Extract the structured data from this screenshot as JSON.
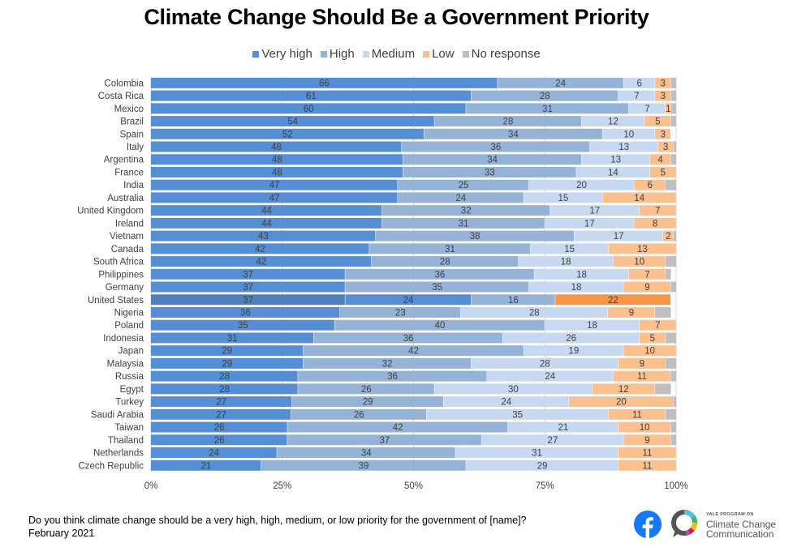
{
  "chart_data": {
    "type": "bar",
    "orientation": "horizontal",
    "stacked": "percent",
    "title": "Climate Change Should Be a Government Priority",
    "xlabel": "",
    "ylabel": "",
    "xlim": [
      0,
      100
    ],
    "x_ticks": [
      "0%",
      "25%",
      "50%",
      "75%",
      "100%"
    ],
    "grid": "vertical",
    "legend_position": "top",
    "categories": [
      "Colombia",
      "Costa Rica",
      "Mexico",
      "Brazil",
      "Spain",
      "Italy",
      "Argentina",
      "France",
      "India",
      "Australia",
      "United Kingdom",
      "Ireland",
      "Vietnam",
      "Canada",
      "South Africa",
      "Philippines",
      "Germany",
      "United States",
      "Nigeria",
      "Poland",
      "Indonesia",
      "Japan",
      "Malaysia",
      "Russia",
      "Egypt",
      "Turkey",
      "Saudi Arabia",
      "Taiwan",
      "Thailand",
      "Netherlands",
      "Czech Republic"
    ],
    "series": [
      {
        "name": "Very high",
        "color": "#558ed5",
        "values": [
          66,
          61,
          60,
          54,
          52,
          48,
          48,
          48,
          47,
          47,
          44,
          44,
          43,
          42,
          42,
          37,
          37,
          37,
          36,
          35,
          31,
          29,
          29,
          28,
          28,
          27,
          27,
          26,
          26,
          24,
          21
        ]
      },
      {
        "name": "High",
        "color": "#95b3d7",
        "values": [
          24,
          28,
          31,
          28,
          34,
          36,
          34,
          33,
          25,
          24,
          32,
          31,
          38,
          31,
          28,
          36,
          35,
          24,
          23,
          40,
          36,
          42,
          32,
          36,
          26,
          29,
          26,
          42,
          37,
          34,
          39
        ]
      },
      {
        "name": "Medium",
        "color": "#c6d9f1",
        "values": [
          6,
          7,
          7,
          12,
          10,
          13,
          13,
          14,
          20,
          15,
          17,
          17,
          17,
          15,
          18,
          18,
          18,
          16,
          28,
          18,
          26,
          19,
          28,
          24,
          30,
          24,
          35,
          21,
          27,
          31,
          29
        ]
      },
      {
        "name": "Low",
        "color": "#fac090",
        "values": [
          3,
          3,
          1,
          5,
          3,
          3,
          4,
          5,
          6,
          14,
          7,
          8,
          2,
          13,
          10,
          7,
          9,
          22,
          9,
          7,
          5,
          10,
          9,
          11,
          12,
          20,
          11,
          10,
          9,
          11,
          11
        ]
      },
      {
        "name": "No response",
        "color": "#bfbfbf",
        "values": [
          1,
          1,
          1,
          1,
          0,
          0.5,
          1,
          0,
          2,
          0,
          0,
          0,
          0.5,
          0,
          2,
          1,
          1,
          0,
          3,
          0,
          2,
          0,
          2,
          1,
          3,
          0.5,
          2,
          1,
          1,
          0,
          0
        ]
      }
    ],
    "highlight": {
      "category": "United States",
      "colors": [
        "#4f81bd",
        "#558ed5",
        "#95b3d7",
        "#f79646",
        "#bfbfbf"
      ]
    }
  },
  "footer": {
    "question": "Do you think climate change should be a very high, high, medium, or low priority for the government of [name]?",
    "date": "February 2021"
  },
  "logos": {
    "facebook_icon": "facebook-logo-icon",
    "yale_small": "YALE PROGRAM ON",
    "yale_line1": "Climate Change",
    "yale_line2": "Communication"
  }
}
